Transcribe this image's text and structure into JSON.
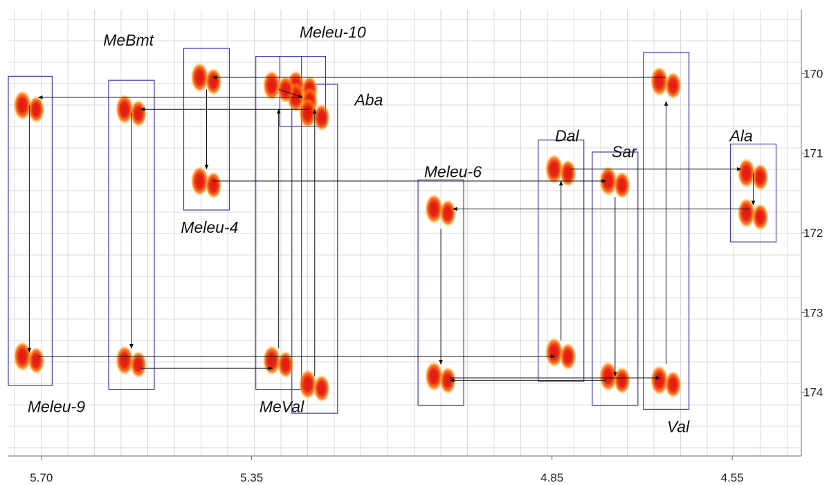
{
  "chart_data": {
    "type": "scatter",
    "title": "",
    "xlabel": "",
    "ylabel": "",
    "x_reversed": true,
    "x_ticks": [
      "5.70",
      "5.35",
      "4.85",
      "4.55"
    ],
    "y_ticks": [
      "170",
      "171",
      "172",
      "173",
      "174"
    ],
    "xlim": [
      5.755,
      4.435
    ],
    "ylim": [
      169.2,
      174.8
    ],
    "grid": true,
    "colors": {
      "peak_core": "#e31a0b",
      "peak_mid": "#ff6a00",
      "peak_edge": "#ffd23f",
      "box": "#3c3cb4",
      "grid": "#d9d9d9",
      "arrow": "#111111"
    },
    "residues": [
      {
        "name": "MeBmt",
        "peaks": [
          [
            5.55,
            170.45
          ],
          [
            5.55,
            173.6
          ]
        ]
      },
      {
        "name": "Meleu-4",
        "peaks": [
          [
            5.425,
            170.05
          ],
          [
            5.425,
            171.35
          ]
        ]
      },
      {
        "name": "Meleu-10",
        "peaks": [
          [
            5.265,
            170.15
          ],
          [
            5.265,
            170.3
          ]
        ]
      },
      {
        "name": "Aba",
        "peaks": [
          [
            5.245,
            170.5
          ],
          [
            5.245,
            173.9
          ]
        ]
      },
      {
        "name": "Dal",
        "peaks": [
          [
            4.835,
            171.2
          ],
          [
            4.835,
            173.5
          ]
        ]
      },
      {
        "name": "Sar",
        "peaks": [
          [
            4.745,
            171.35
          ],
          [
            4.745,
            173.8
          ]
        ]
      },
      {
        "name": "Ala",
        "peaks": [
          [
            4.515,
            171.25
          ],
          [
            4.515,
            171.75
          ]
        ]
      },
      {
        "name": "Meleu-6",
        "peaks": [
          [
            5.035,
            171.7
          ],
          [
            5.035,
            173.8
          ]
        ]
      },
      {
        "name": "Meleu-9",
        "peaks": [
          [
            5.72,
            170.4
          ],
          [
            5.72,
            173.55
          ]
        ]
      },
      {
        "name": "MeVal",
        "peaks": [
          [
            5.305,
            170.15
          ],
          [
            5.305,
            173.6
          ]
        ]
      },
      {
        "name": "Val",
        "peaks": [
          [
            4.66,
            170.1
          ],
          [
            4.66,
            173.85
          ]
        ]
      }
    ],
    "connections": [
      [
        [
          5.72,
          170.4
        ],
        [
          5.72,
          173.5
        ]
      ],
      [
        [
          5.55,
          170.5
        ],
        [
          5.55,
          173.45
        ]
      ],
      [
        [
          5.425,
          170.2
        ],
        [
          5.425,
          171.2
        ]
      ],
      [
        [
          5.305,
          173.45
        ],
        [
          5.305,
          170.45
        ]
      ],
      [
        [
          5.245,
          173.8
        ],
        [
          5.245,
          170.45
        ]
      ],
      [
        [
          5.035,
          171.95
        ],
        [
          5.035,
          173.65
        ]
      ],
      [
        [
          4.835,
          173.35
        ],
        [
          4.835,
          171.35
        ]
      ],
      [
        [
          4.745,
          171.55
        ],
        [
          4.745,
          173.8
        ]
      ],
      [
        [
          4.66,
          173.65
        ],
        [
          4.66,
          170.35
        ]
      ],
      [
        [
          4.515,
          171.25
        ],
        [
          4.515,
          171.65
        ]
      ],
      [
        [
          5.305,
          170.2
        ],
        [
          5.265,
          170.3
        ]
      ],
      [
        [
          4.66,
          170.05
        ],
        [
          5.415,
          170.05
        ]
      ],
      [
        [
          5.265,
          170.3
        ],
        [
          5.705,
          170.3
        ]
      ],
      [
        [
          5.255,
          170.45
        ],
        [
          5.535,
          170.45
        ]
      ],
      [
        [
          5.415,
          171.35
        ],
        [
          4.76,
          171.35
        ]
      ],
      [
        [
          4.82,
          171.2
        ],
        [
          4.535,
          171.2
        ]
      ],
      [
        [
          4.52,
          171.7
        ],
        [
          5.015,
          171.7
        ]
      ],
      [
        [
          5.705,
          173.55
        ],
        [
          4.845,
          173.55
        ]
      ],
      [
        [
          5.535,
          173.7
        ],
        [
          5.315,
          173.7
        ]
      ],
      [
        [
          4.76,
          173.85
        ],
        [
          5.02,
          173.85
        ]
      ],
      [
        [
          5.02,
          173.82
        ],
        [
          4.67,
          173.82
        ]
      ]
    ],
    "annotations": [
      {
        "text": "MeBmt",
        "x": 5.555,
        "y": 169.65
      },
      {
        "text": "Meleu-10",
        "x": 5.215,
        "y": 169.55
      },
      {
        "text": "Aba",
        "x": 5.155,
        "y": 170.4
      },
      {
        "text": "Dal",
        "x": 4.825,
        "y": 170.85
      },
      {
        "text": "Sar",
        "x": 4.73,
        "y": 171.05
      },
      {
        "text": "Ala",
        "x": 4.535,
        "y": 170.85
      },
      {
        "text": "Meleu-6",
        "x": 5.015,
        "y": 171.3
      },
      {
        "text": "Meleu-4",
        "x": 5.42,
        "y": 172.0
      },
      {
        "text": "Meleu-9",
        "x": 5.675,
        "y": 174.25
      },
      {
        "text": "MeVal",
        "x": 5.3,
        "y": 174.25
      },
      {
        "text": "Val",
        "x": 4.64,
        "y": 174.5
      }
    ]
  }
}
